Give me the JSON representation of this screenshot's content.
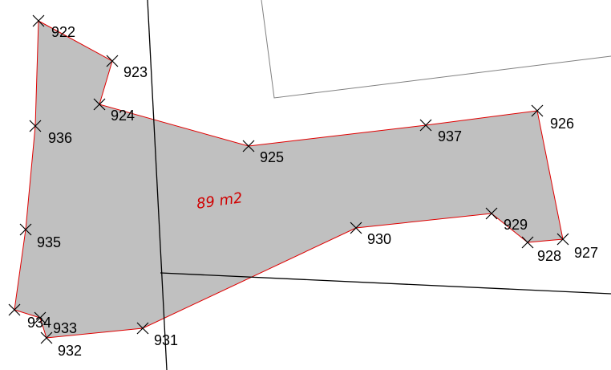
{
  "parcel": {
    "area_label": "89 m2",
    "fill_color": "#c0c0c0",
    "boundary_color": "#e00000"
  },
  "colors": {
    "cadastral_line": "#000000",
    "building_line": "#808080",
    "marker": "#000000"
  },
  "points": [
    {
      "id": "922",
      "label": "922"
    },
    {
      "id": "923",
      "label": "923"
    },
    {
      "id": "924",
      "label": "924"
    },
    {
      "id": "925",
      "label": "925"
    },
    {
      "id": "937",
      "label": "937"
    },
    {
      "id": "926",
      "label": "926"
    },
    {
      "id": "927",
      "label": "927"
    },
    {
      "id": "928",
      "label": "928"
    },
    {
      "id": "929",
      "label": "929"
    },
    {
      "id": "930",
      "label": "930"
    },
    {
      "id": "931",
      "label": "931"
    },
    {
      "id": "932",
      "label": "932"
    },
    {
      "id": "933",
      "label": "933"
    },
    {
      "id": "934",
      "label": "934"
    },
    {
      "id": "935",
      "label": "935"
    },
    {
      "id": "936",
      "label": "936"
    }
  ]
}
